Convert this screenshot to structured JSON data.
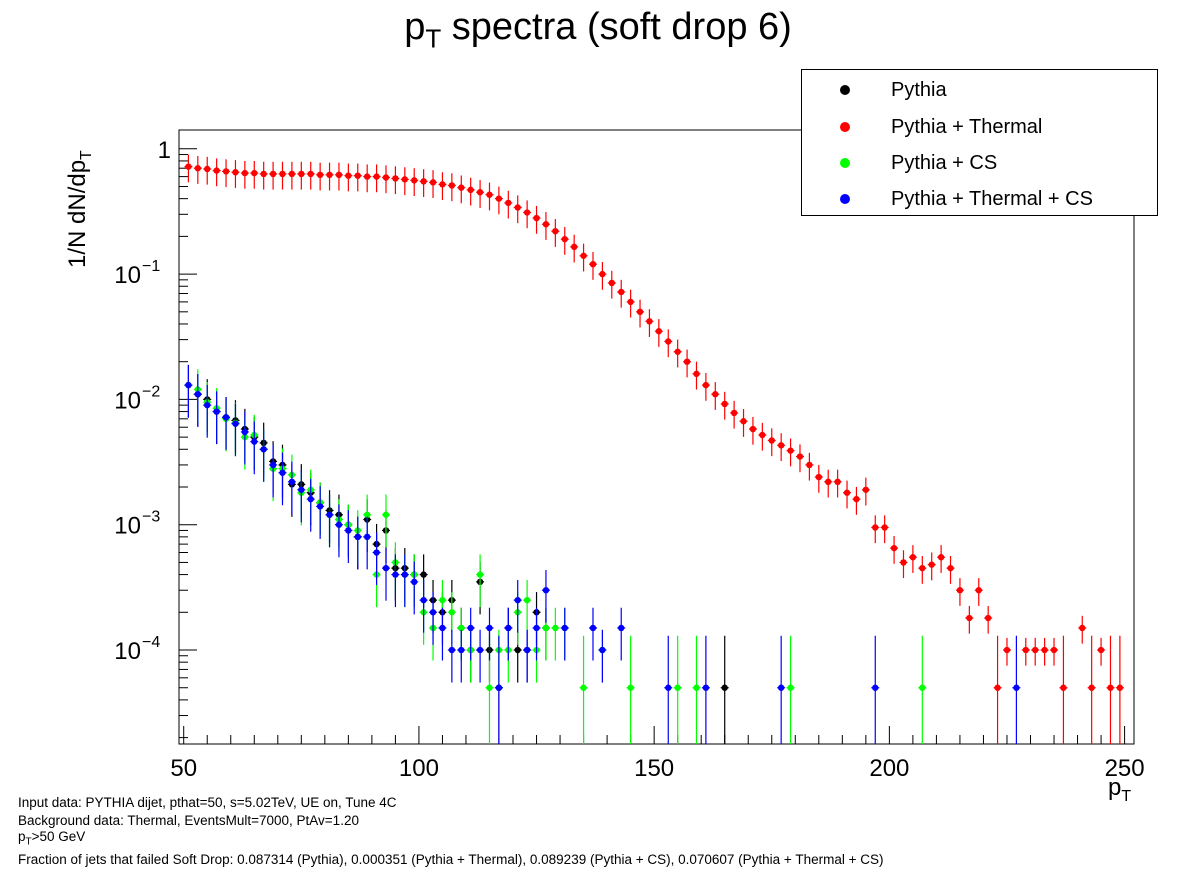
{
  "title": {
    "main": "p",
    "sub": "T",
    "rest": " spectra (soft drop 6)"
  },
  "ylabel": {
    "main": "1/N dN/dp",
    "sub": "T"
  },
  "xlabel": {
    "main": "p",
    "sub": "T"
  },
  "footer": {
    "line1": "Input data: PYTHIA dijet, pthat=50, s=5.02TeV, UE on, Tune 4C",
    "line2": "Background data: Thermal, EventsMult=7000, PtAv=1.20",
    "line3_main": "p",
    "line3_sub": "T",
    "line3_rest": ">50 GeV",
    "line4": "Fraction of jets that failed Soft Drop: 0.087314 (Pythia), 0.000351 (Pythia + Thermal),  0.089239 (Pythia + CS), 0.070607 (Pythia + Thermal + CS)"
  },
  "legend": [
    {
      "label": "Pythia",
      "color": "#000000"
    },
    {
      "label": "Pythia + Thermal",
      "color": "#ff0000"
    },
    {
      "label": "Pythia + CS",
      "color": "#00ff00"
    },
    {
      "label": "Pythia + Thermal + CS",
      "color": "#0000ff"
    }
  ],
  "chart_data": {
    "type": "scatter",
    "xlim": [
      49,
      252
    ],
    "ylim_log10": [
      -4.75,
      0.15
    ],
    "yscale": "log",
    "x_ticks": [
      "50",
      "100",
      "150",
      "200",
      "250"
    ],
    "y_ticks": [
      {
        "base": "1",
        "exp": ""
      },
      {
        "base": "10",
        "exp": "−1"
      },
      {
        "base": "10",
        "exp": "−2"
      },
      {
        "base": "10",
        "exp": "−3"
      },
      {
        "base": "10",
        "exp": "−4"
      }
    ],
    "series": [
      {
        "name": "Pythia + Thermal",
        "color": "#ff0000",
        "x": [
          51,
          53,
          55,
          57,
          59,
          61,
          63,
          65,
          67,
          69,
          71,
          73,
          75,
          77,
          79,
          81,
          83,
          85,
          87,
          89,
          91,
          93,
          95,
          97,
          99,
          101,
          103,
          105,
          107,
          109,
          111,
          113,
          115,
          117,
          119,
          121,
          123,
          125,
          127,
          129,
          131,
          133,
          135,
          137,
          139,
          141,
          143,
          145,
          147,
          149,
          151,
          153,
          155,
          157,
          159,
          161,
          163,
          165,
          167,
          169,
          171,
          173,
          175,
          177,
          179,
          181,
          183,
          185,
          187,
          189,
          191,
          193,
          195,
          197,
          199,
          201,
          203,
          205,
          207,
          209,
          211,
          213,
          215,
          217,
          219,
          221,
          223,
          225,
          229,
          231,
          233,
          235,
          237,
          241,
          243,
          245,
          247,
          249
        ],
        "y": [
          0.72,
          0.7,
          0.69,
          0.67,
          0.66,
          0.65,
          0.64,
          0.64,
          0.63,
          0.63,
          0.63,
          0.63,
          0.63,
          0.63,
          0.62,
          0.62,
          0.62,
          0.61,
          0.61,
          0.6,
          0.6,
          0.59,
          0.58,
          0.57,
          0.56,
          0.55,
          0.54,
          0.52,
          0.51,
          0.49,
          0.47,
          0.45,
          0.43,
          0.4,
          0.37,
          0.34,
          0.31,
          0.28,
          0.25,
          0.22,
          0.19,
          0.165,
          0.14,
          0.12,
          0.1,
          0.085,
          0.072,
          0.06,
          0.05,
          0.042,
          0.035,
          0.029,
          0.024,
          0.02,
          0.016,
          0.013,
          0.011,
          0.0092,
          0.0078,
          0.0067,
          0.0058,
          0.0052,
          0.0047,
          0.0043,
          0.0039,
          0.0035,
          0.003,
          0.0024,
          0.0022,
          0.0022,
          0.0018,
          0.0016,
          0.0019,
          0.00095,
          0.00095,
          0.00065,
          0.0005,
          0.00055,
          0.00045,
          0.00048,
          0.00055,
          0.00045,
          0.0003,
          0.00018,
          0.0003,
          0.00018,
          5e-05,
          0.0001,
          0.0001,
          0.0001,
          0.0001,
          0.0001,
          5e-05,
          0.00015,
          5e-05,
          0.0001,
          5e-05,
          5e-05
        ],
        "yerr_rel": 0.25
      },
      {
        "name": "Pythia",
        "color": "#000000",
        "x": [
          51,
          53,
          55,
          57,
          59,
          61,
          63,
          65,
          67,
          69,
          71,
          73,
          75,
          77,
          79,
          81,
          83,
          85,
          87,
          89,
          91,
          93,
          95,
          97,
          99,
          101,
          103,
          105,
          107,
          109,
          111,
          113,
          115,
          117,
          119,
          121,
          123,
          125,
          127,
          165
        ],
        "y": [
          0.013,
          0.011,
          0.01,
          0.008,
          0.0072,
          0.0068,
          0.0058,
          0.005,
          0.0045,
          0.0032,
          0.003,
          0.0021,
          0.0021,
          0.0018,
          0.0015,
          0.0013,
          0.0012,
          0.001,
          0.0008,
          0.0011,
          0.0007,
          0.0009,
          0.00045,
          0.00045,
          0.0004,
          0.0004,
          0.00025,
          0.0002,
          0.00025,
          0.00015,
          0.0001,
          0.00035,
          0.0001,
          5e-05,
          0.00015,
          0.0001,
          0.0001,
          0.0002,
          0.00015,
          5e-05
        ],
        "yerr_rel": 0.45
      },
      {
        "name": "Pythia + CS",
        "color": "#00ff00",
        "x": [
          51,
          53,
          55,
          57,
          59,
          61,
          63,
          65,
          67,
          69,
          71,
          73,
          75,
          77,
          79,
          81,
          83,
          85,
          87,
          89,
          91,
          93,
          95,
          97,
          99,
          101,
          103,
          105,
          107,
          109,
          111,
          113,
          115,
          117,
          119,
          121,
          123,
          125,
          127,
          129,
          131,
          135,
          139,
          145,
          155,
          159,
          179,
          207
        ],
        "y": [
          0.013,
          0.012,
          0.0095,
          0.0085,
          0.007,
          0.0065,
          0.005,
          0.0052,
          0.004,
          0.0028,
          0.0028,
          0.0025,
          0.0018,
          0.0019,
          0.0015,
          0.0012,
          0.0011,
          0.001,
          0.0009,
          0.0012,
          0.0004,
          0.0012,
          0.0005,
          0.0004,
          0.0004,
          0.0002,
          0.00015,
          0.00025,
          0.0002,
          0.00015,
          0.0001,
          0.0004,
          5e-05,
          0.0001,
          0.0001,
          0.0002,
          0.00025,
          0.0001,
          0.00015,
          0.00015,
          0.00015,
          5e-05,
          0.0001,
          5e-05,
          5e-05,
          5e-05,
          5e-05,
          5e-05
        ],
        "yerr_rel": 0.45
      },
      {
        "name": "Pythia + Thermal + CS",
        "color": "#0000ff",
        "x": [
          51,
          53,
          55,
          57,
          59,
          61,
          63,
          65,
          67,
          69,
          71,
          73,
          75,
          77,
          79,
          81,
          83,
          85,
          87,
          89,
          91,
          93,
          95,
          97,
          99,
          101,
          103,
          105,
          107,
          109,
          111,
          113,
          115,
          117,
          119,
          121,
          123,
          125,
          127,
          131,
          137,
          139,
          143,
          153,
          161,
          177,
          197,
          227
        ],
        "y": [
          0.013,
          0.011,
          0.009,
          0.008,
          0.0072,
          0.0064,
          0.0055,
          0.0046,
          0.004,
          0.003,
          0.0026,
          0.0022,
          0.0019,
          0.0016,
          0.0014,
          0.0012,
          0.001,
          0.0009,
          0.0008,
          0.0008,
          0.0006,
          0.00045,
          0.0004,
          0.0004,
          0.00035,
          0.00025,
          0.0002,
          0.00015,
          0.0001,
          0.0001,
          0.00015,
          0.0001,
          0.00015,
          5e-05,
          0.00015,
          0.00025,
          0.0001,
          0.00015,
          0.0003,
          0.00015,
          0.00015,
          0.0001,
          0.00015,
          5e-05,
          5e-05,
          5e-05,
          5e-05,
          5e-05
        ],
        "yerr_rel": 0.45
      }
    ]
  }
}
